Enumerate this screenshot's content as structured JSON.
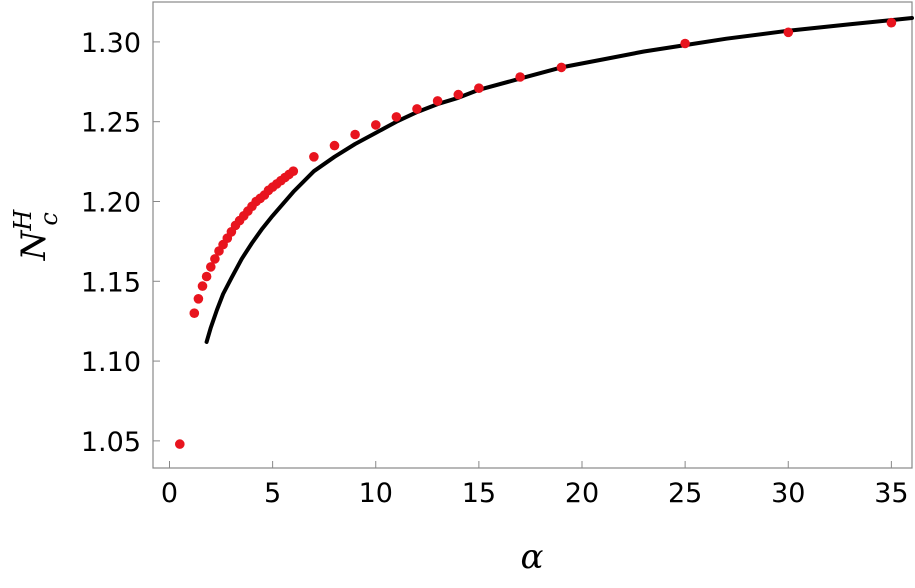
{
  "chart_data": {
    "type": "scatter",
    "title": "",
    "xlabel": "α",
    "ylabel": {
      "base": "N",
      "sub": "c",
      "sup": "H"
    },
    "xlim": [
      -0.8,
      36
    ],
    "ylim": [
      1.033,
      1.325
    ],
    "xticks": [
      0,
      5,
      10,
      15,
      20,
      25,
      30,
      35
    ],
    "yticks": [
      1.05,
      1.1,
      1.15,
      1.2,
      1.25,
      1.3
    ],
    "xtick_labels": [
      "0",
      "5",
      "10",
      "15",
      "20",
      "25",
      "30",
      "35"
    ],
    "ytick_labels": [
      "1.05",
      "1.10",
      "1.15",
      "1.20",
      "1.25",
      "1.30"
    ],
    "grid": false,
    "series": [
      {
        "kind": "points",
        "color": "#e8141e",
        "x": [
          0.5,
          1.2,
          1.4,
          1.6,
          1.8,
          2.0,
          2.2,
          2.4,
          2.6,
          2.8,
          3.0,
          3.2,
          3.4,
          3.6,
          3.8,
          4.0,
          4.2,
          4.4,
          4.6,
          4.8,
          5.0,
          5.2,
          5.4,
          5.6,
          5.8,
          6.0,
          7,
          8,
          9,
          10,
          11,
          12,
          13,
          14,
          15,
          17,
          19,
          25,
          30,
          35
        ],
        "y": [
          1.048,
          1.13,
          1.139,
          1.147,
          1.153,
          1.159,
          1.164,
          1.169,
          1.173,
          1.177,
          1.181,
          1.185,
          1.188,
          1.191,
          1.194,
          1.197,
          1.2,
          1.202,
          1.204,
          1.207,
          1.209,
          1.211,
          1.213,
          1.215,
          1.217,
          1.219,
          1.228,
          1.235,
          1.242,
          1.248,
          1.253,
          1.258,
          1.263,
          1.267,
          1.271,
          1.278,
          1.284,
          1.299,
          1.306,
          1.312
        ]
      },
      {
        "kind": "curve",
        "color": "#000000",
        "x": [
          1.8,
          2.0,
          2.3,
          2.6,
          3.0,
          3.5,
          4.0,
          4.5,
          5.0,
          6.0,
          7.0,
          8.0,
          9.0,
          10,
          11,
          12,
          13,
          14,
          15,
          17,
          19,
          21,
          23,
          25,
          27,
          30,
          33,
          36
        ],
        "y": [
          1.112,
          1.121,
          1.132,
          1.142,
          1.152,
          1.164,
          1.174,
          1.183,
          1.191,
          1.206,
          1.219,
          1.228,
          1.236,
          1.243,
          1.25,
          1.256,
          1.261,
          1.265,
          1.27,
          1.277,
          1.284,
          1.289,
          1.294,
          1.298,
          1.302,
          1.307,
          1.311,
          1.315
        ]
      }
    ]
  }
}
